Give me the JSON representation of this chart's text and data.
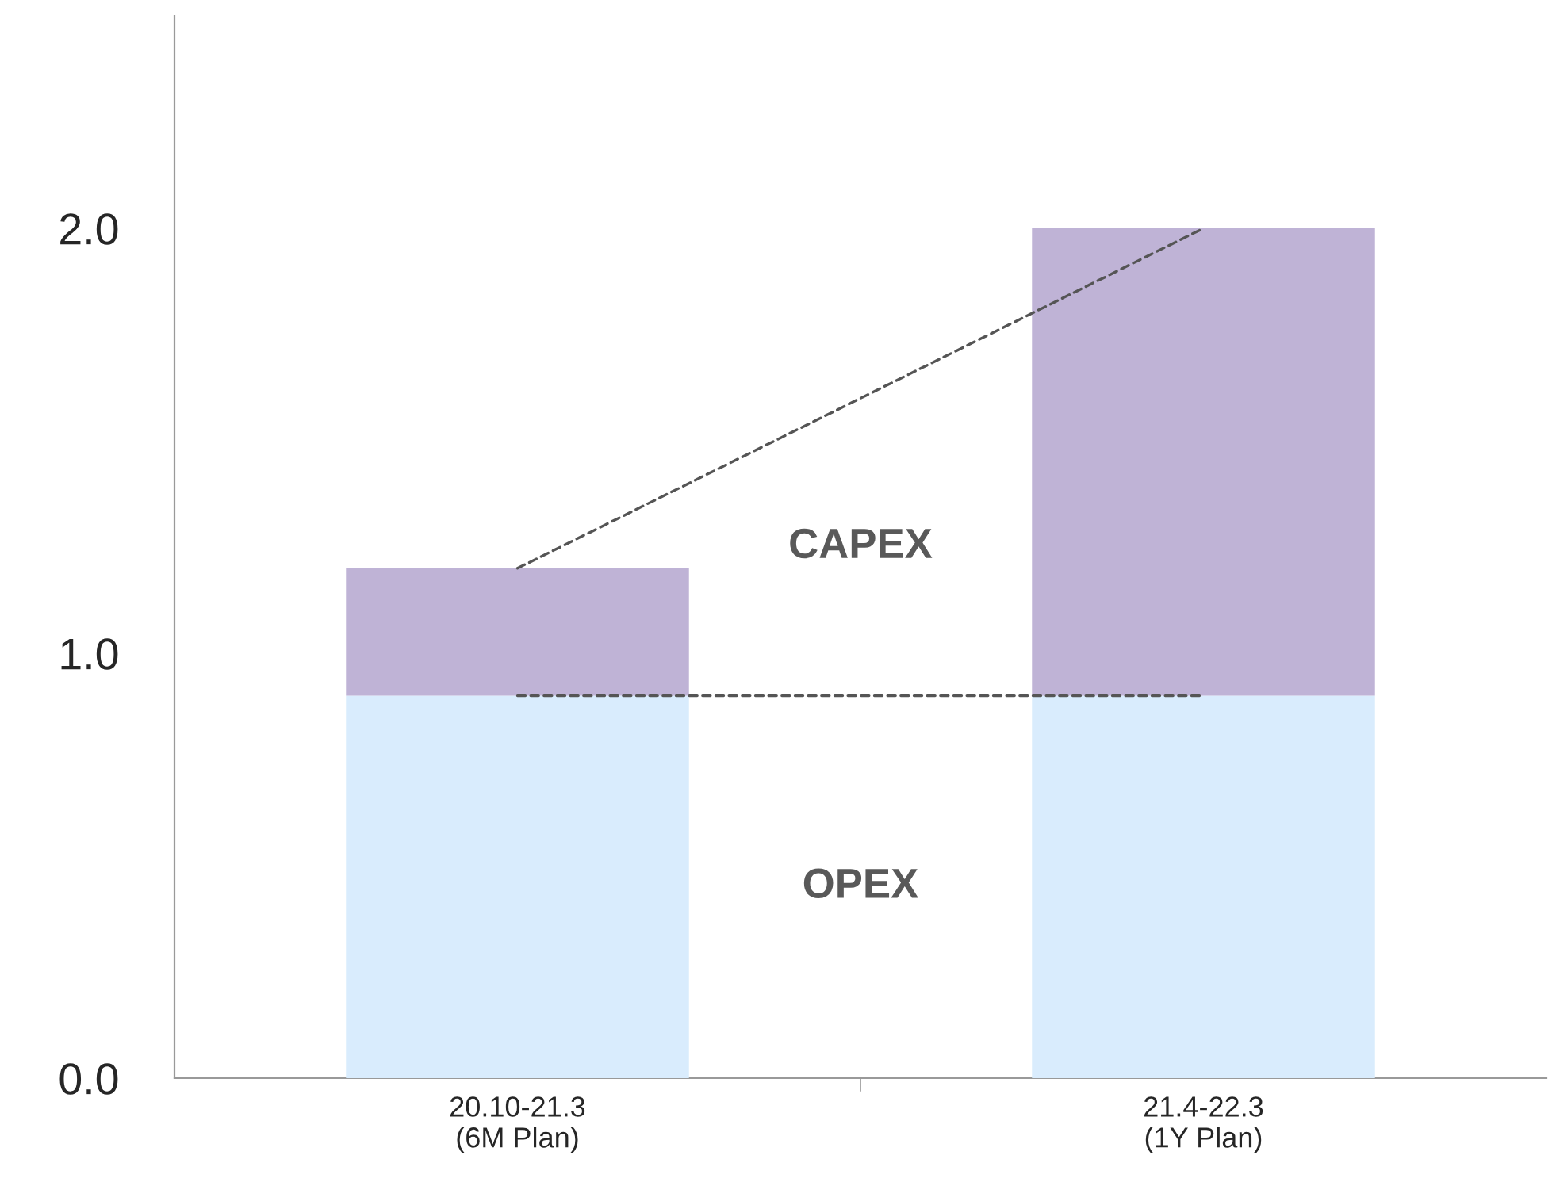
{
  "chart_data": {
    "type": "bar",
    "stacked": true,
    "categories": [
      "20.10-21.3\n(6M Plan)",
      "21.4-22.3\n(1Y Plan)"
    ],
    "series": [
      {
        "name": "OPEX",
        "color": "#d9ecfd",
        "values": [
          0.9,
          0.9
        ]
      },
      {
        "name": "CAPEX",
        "color": "#bfb3d6",
        "values": [
          0.3,
          1.1
        ]
      },
      {
        "type": "line",
        "color": "#555555",
        "line_style": "dashed",
        "values": [
          0.9,
          0.9
        ]
      },
      {
        "type": "line",
        "color": "#555555",
        "line_style": "dashed",
        "values": [
          1.2,
          2.0
        ]
      }
    ],
    "ylim": [
      0,
      2.5
    ],
    "yticks": [
      {
        "value": 0,
        "label": "0.0"
      },
      {
        "value": 1,
        "label": "1.0"
      },
      {
        "value": 2,
        "label": "2.0"
      }
    ],
    "grid": false,
    "legend": false
  }
}
